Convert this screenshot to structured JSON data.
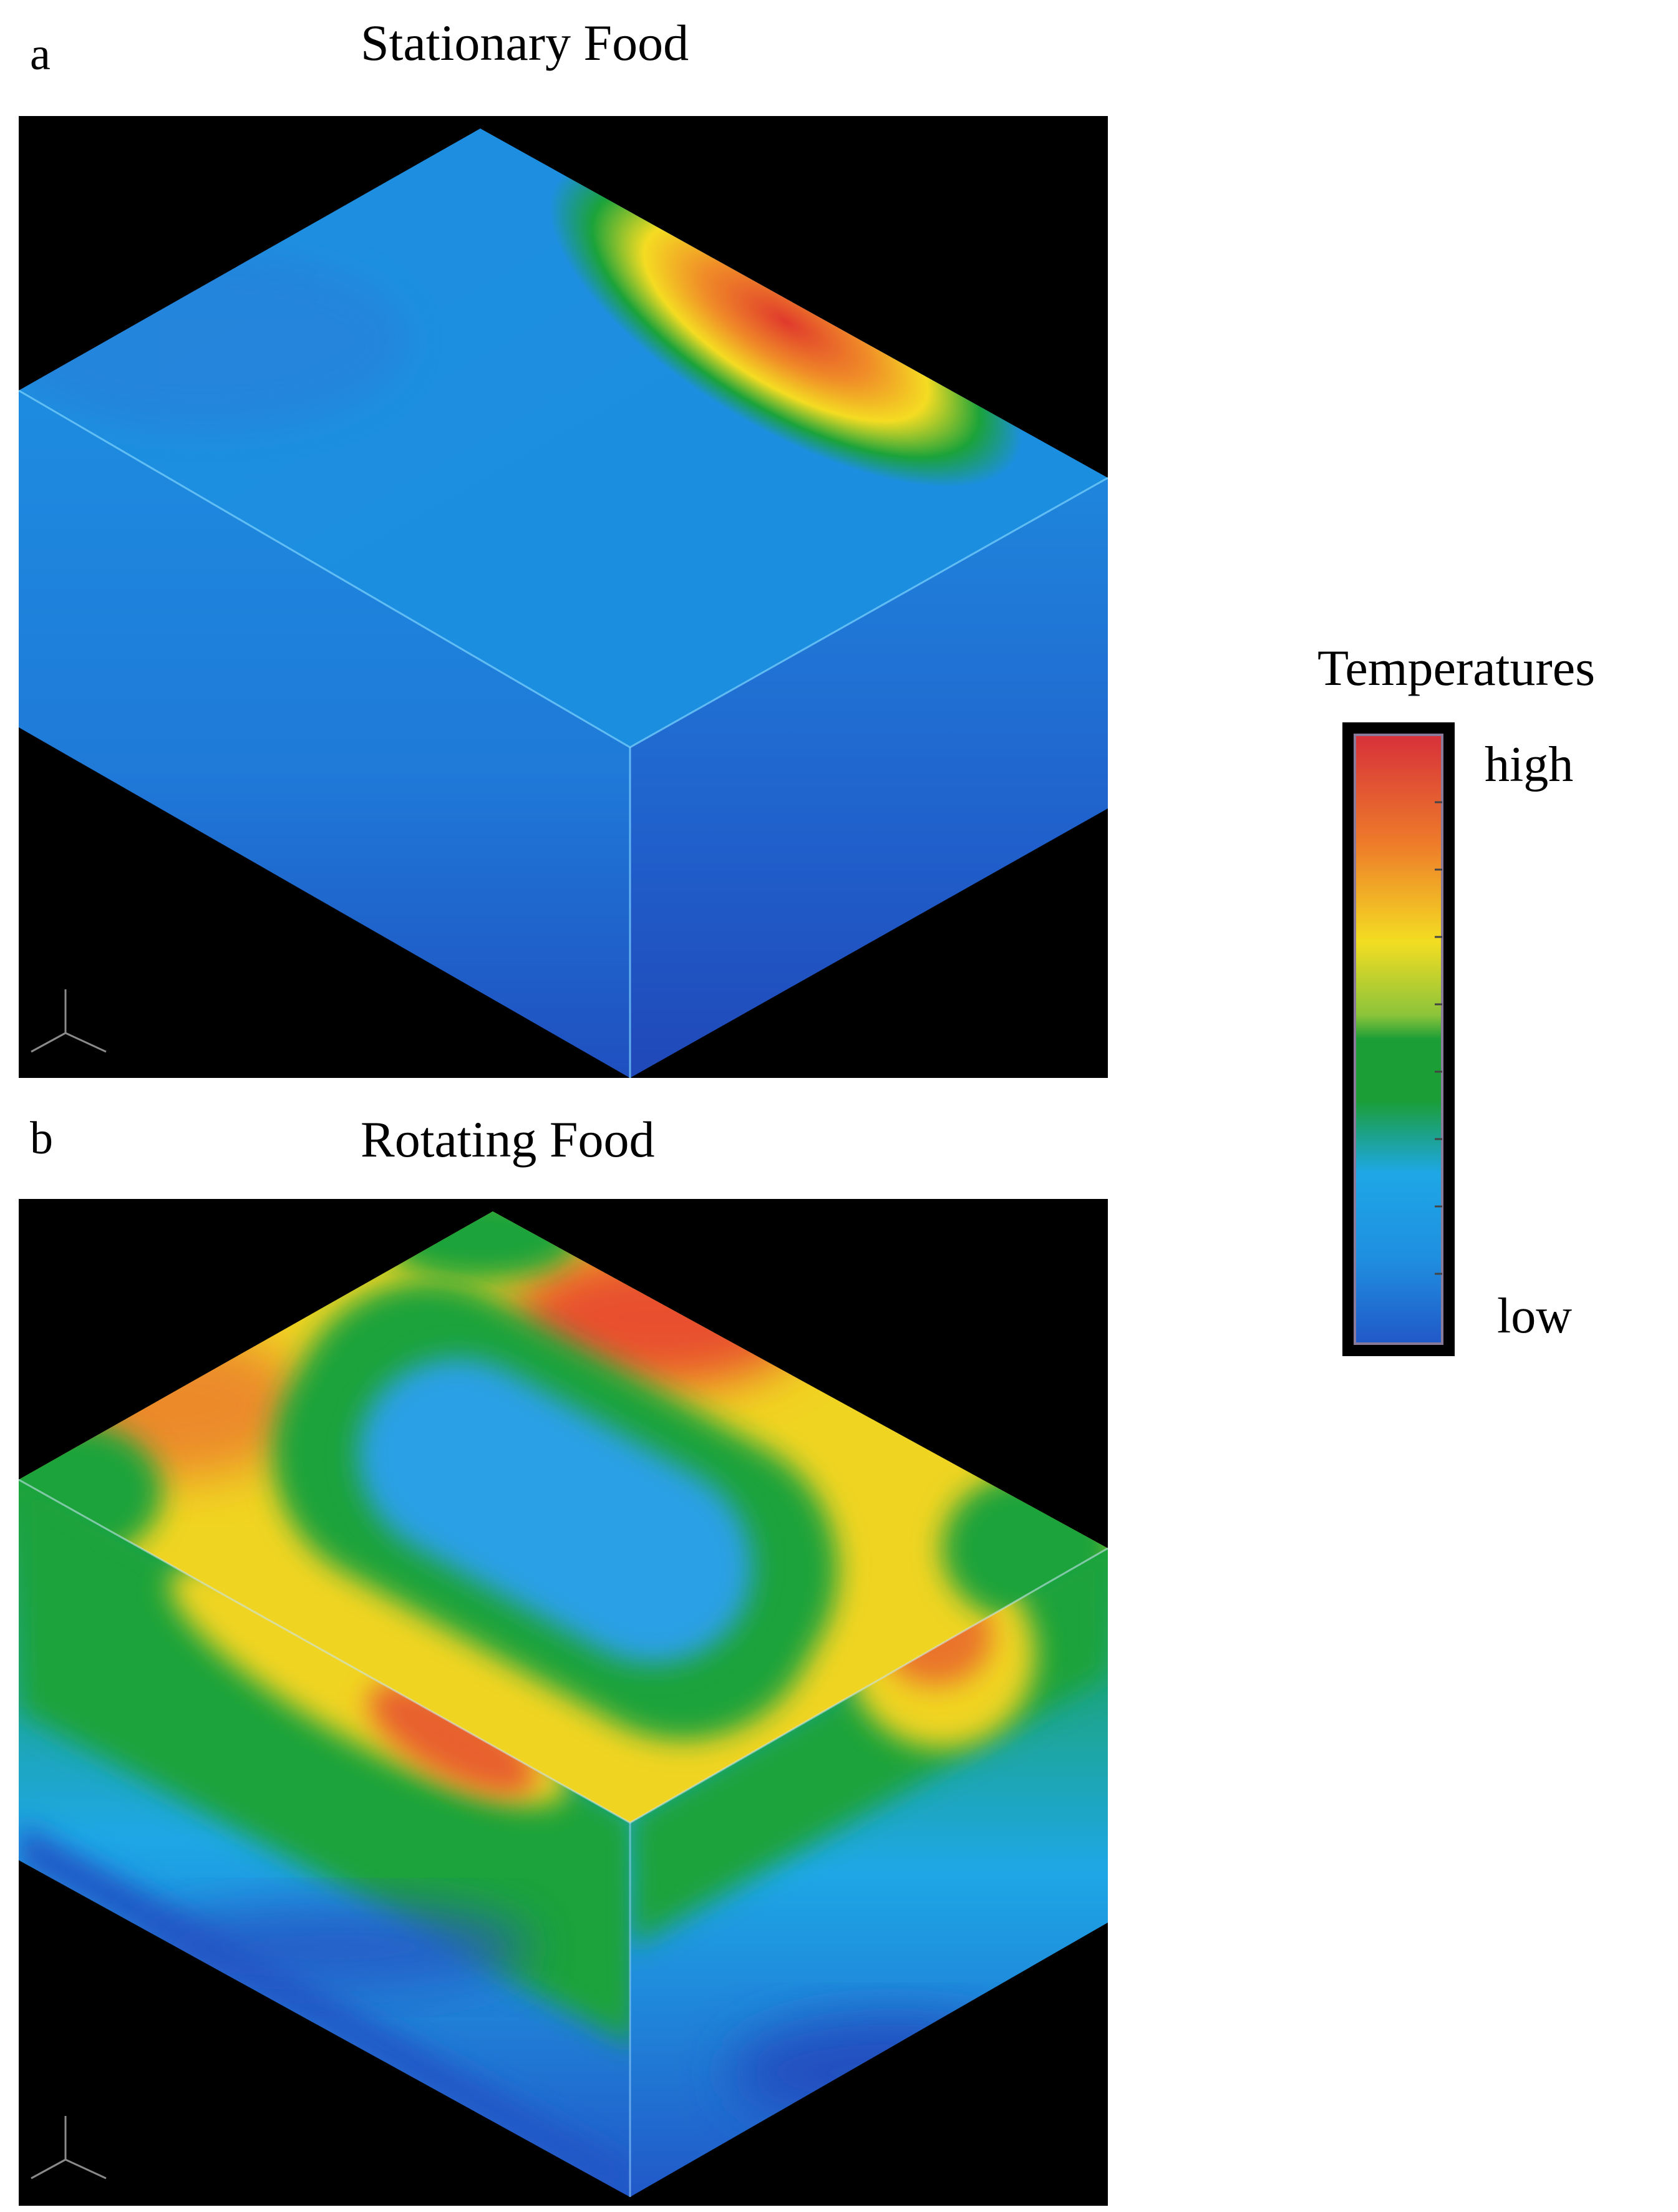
{
  "panels": [
    {
      "letter": "a",
      "title": "Stationary Food"
    },
    {
      "letter": "b",
      "title": "Rotating Food"
    }
  ],
  "legend": {
    "title": "Temperatures",
    "high_label": "high",
    "low_label": "low",
    "colors": [
      "#d7303a",
      "#ee7c2a",
      "#f3dd22",
      "#1b9e36",
      "#1ea7e6",
      "#2158c8"
    ]
  }
}
